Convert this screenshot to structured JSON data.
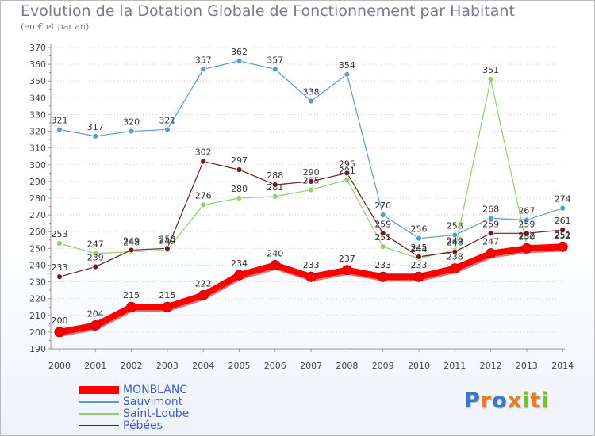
{
  "title": "Evolution de la Dotation Globale de Fonctionnement par Habitant",
  "subtitle": "(en € et par an)",
  "logo": {
    "letters": [
      {
        "ch": "P",
        "color": "#3a78c9"
      },
      {
        "ch": "r",
        "color": "#e67e22"
      },
      {
        "ch": "o",
        "color": "#3a78c9"
      },
      {
        "ch": "x",
        "color": "#e67e22"
      },
      {
        "ch": "i",
        "color": "#7bbf2a"
      },
      {
        "ch": "t",
        "color": "#e67e22"
      },
      {
        "ch": "i",
        "color": "#7bbf2a"
      }
    ]
  },
  "chart_data": {
    "type": "line",
    "title": "Evolution de la Dotation Globale de Fonctionnement par Habitant",
    "subtitle": "(en € et par an)",
    "xlabel": "",
    "ylabel": "",
    "ylim": [
      190,
      370
    ],
    "ytick_step": 10,
    "grid": "horizontal dotted",
    "legend_position": "bottom-left",
    "categories": [
      "2000",
      "2001",
      "2002",
      "2003",
      "2004",
      "2005",
      "2006",
      "2007",
      "2008",
      "2009",
      "2010",
      "2011",
      "2012",
      "2013",
      "2014"
    ],
    "series": [
      {
        "name": "Sauvimont",
        "color": "#5b9bd5",
        "values": [
          321,
          317,
          320,
          321,
          357,
          362,
          357,
          338,
          354,
          270,
          256,
          258,
          268,
          267,
          274
        ]
      },
      {
        "name": "Saint-Loube",
        "color": "#8fd16a",
        "values": [
          253,
          247,
          248,
          249,
          276,
          280,
          281,
          285,
          291,
          251,
          244,
          249,
          351,
          252,
          252
        ]
      },
      {
        "name": "Pébées",
        "color": "#6b1d1d",
        "values": [
          233,
          239,
          249,
          250,
          302,
          297,
          288,
          290,
          295,
          259,
          245,
          248,
          259,
          259,
          261
        ]
      },
      {
        "name": "MONBLANC",
        "color": "#ff0000",
        "values": [
          200,
          204,
          215,
          215,
          222,
          234,
          240,
          233,
          237,
          233,
          233,
          238,
          247,
          250,
          251
        ]
      }
    ],
    "legend": [
      "MONBLANC",
      "Sauvimont",
      "Saint-Loube",
      "Pébées"
    ]
  }
}
